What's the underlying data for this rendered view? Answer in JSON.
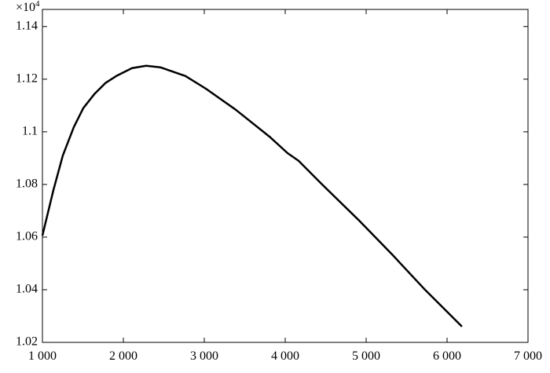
{
  "chart_data": {
    "type": "line",
    "axis_multiplier": {
      "base": "×10",
      "exponent": "4"
    },
    "x": [
      1000,
      1136,
      1252,
      1388,
      1505,
      1641,
      1777,
      1913,
      2107,
      2282,
      2456,
      2767,
      3019,
      3388,
      3816,
      4029,
      4165,
      4456,
      4903,
      5330,
      5718,
      6184
    ],
    "values": [
      1.0606,
      1.0779,
      1.091,
      1.1018,
      1.109,
      1.1143,
      1.1185,
      1.1212,
      1.1242,
      1.1251,
      1.1245,
      1.1212,
      1.1164,
      1.1084,
      1.0979,
      1.0919,
      1.089,
      1.08,
      1.0666,
      1.0531,
      1.0403,
      1.026
    ],
    "color": "#000000",
    "xlim": [
      1000,
      7000
    ],
    "xticks": [
      {
        "value": 1000,
        "label": "1 000"
      },
      {
        "value": 2000,
        "label": "2 000"
      },
      {
        "value": 3000,
        "label": "3 000"
      },
      {
        "value": 4000,
        "label": "4 000"
      },
      {
        "value": 5000,
        "label": "5 000"
      },
      {
        "value": 6000,
        "label": "6 000"
      },
      {
        "value": 7000,
        "label": "7 000"
      }
    ],
    "ylim": [
      1.02,
      1.1465
    ],
    "yticks": [
      1.02,
      1.04,
      1.06,
      1.08,
      1.1,
      1.12,
      1.14
    ],
    "grid": false
  }
}
